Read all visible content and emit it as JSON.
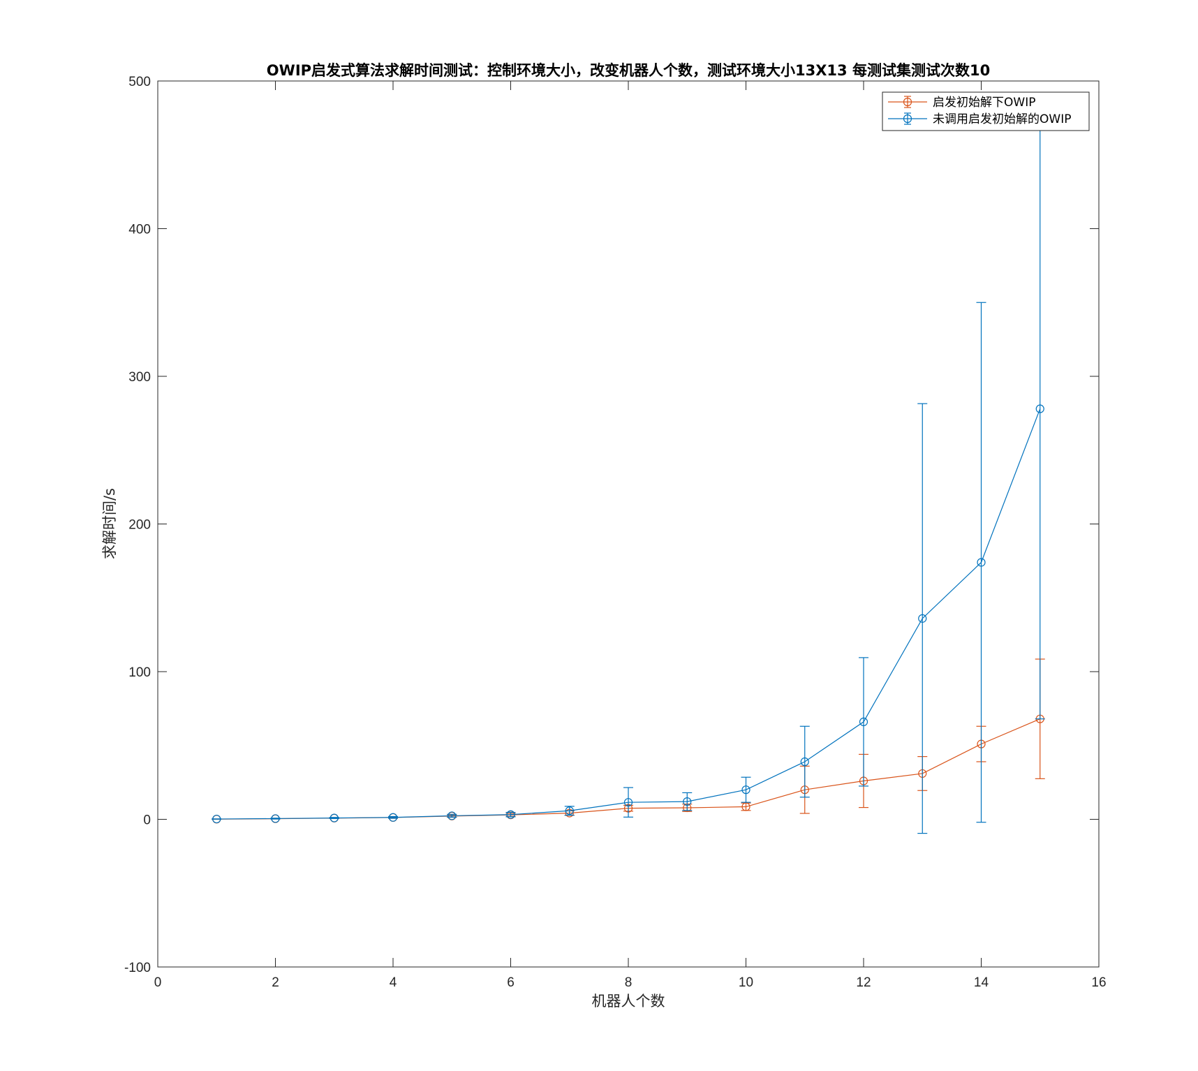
{
  "chart_data": {
    "type": "line",
    "title": "OWIP启发式算法求解时间测试：控制环境大小，改变机器人个数，测试环境大小13X13 每测试集测试次数10",
    "xlabel": "机器人个数",
    "ylabel": "求解时间/s",
    "xlim": [
      0,
      16
    ],
    "ylim": [
      -100,
      500
    ],
    "xticks": [
      0,
      2,
      4,
      6,
      8,
      10,
      12,
      14,
      16
    ],
    "yticks": [
      -100,
      0,
      100,
      200,
      300,
      400,
      500
    ],
    "x": [
      1,
      2,
      3,
      4,
      5,
      6,
      7,
      8,
      9,
      10,
      11,
      12,
      13,
      14,
      15
    ],
    "legend_location": "top-right",
    "grid": false,
    "series": [
      {
        "name": "启发初始解下OWIP",
        "color": "#D95319",
        "marker": "circle",
        "values": [
          0.1,
          0.4,
          0.8,
          1.2,
          2.2,
          3.0,
          4.2,
          7.5,
          7.8,
          8.5,
          20,
          26,
          31,
          51,
          68
        ],
        "error": [
          0.1,
          0.2,
          0.3,
          0.5,
          0.8,
          1.0,
          1.5,
          2.0,
          2.5,
          2.5,
          16,
          18,
          11.5,
          12,
          40.5
        ]
      },
      {
        "name": "未调用启发初始解的OWIP",
        "color": "#0072BD",
        "marker": "circle",
        "values": [
          0.2,
          0.5,
          0.9,
          1.3,
          2.4,
          3.2,
          5.8,
          11.5,
          12,
          20,
          39,
          66,
          136,
          174,
          278
        ],
        "error": [
          0.1,
          0.3,
          0.4,
          0.6,
          1.0,
          1.5,
          3.0,
          10,
          6,
          8.5,
          24,
          43.5,
          145.5,
          176,
          210
        ]
      }
    ]
  }
}
